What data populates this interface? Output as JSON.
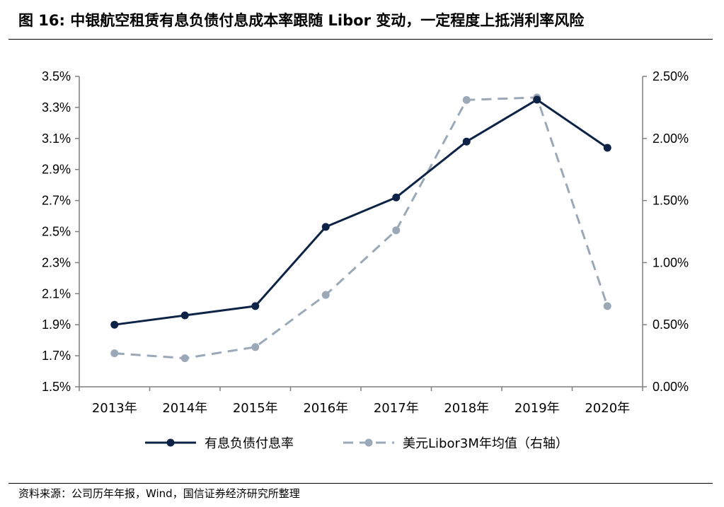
{
  "figure": {
    "title": "图 16:  中银航空租赁有息负债付息成本率跟随 Libor 变动，一定程度上抵消利率风险",
    "source": "资料来源：公司历年年报，Wind，国信证券经济研究所整理"
  },
  "chart_data": {
    "type": "line",
    "categories": [
      "2013年",
      "2014年",
      "2015年",
      "2016年",
      "2017年",
      "2018年",
      "2019年",
      "2020年"
    ],
    "series": [
      {
        "name": "有息负债付息率",
        "axis": "left",
        "color": "#0d2346",
        "dash": "solid",
        "values": [
          1.9,
          1.96,
          2.02,
          2.53,
          2.72,
          3.08,
          3.35,
          3.04
        ]
      },
      {
        "name": "美元Libor3M年均值（右轴）",
        "axis": "right",
        "color": "#9aa8b8",
        "dash": "dashed",
        "values": [
          0.27,
          0.23,
          0.32,
          0.74,
          1.26,
          2.31,
          2.33,
          0.65
        ]
      }
    ],
    "y_left": {
      "min": 1.5,
      "max": 3.5,
      "ticks": [
        1.5,
        1.7,
        1.9,
        2.1,
        2.3,
        2.5,
        2.7,
        2.9,
        3.1,
        3.3,
        3.5
      ],
      "labels": [
        "1.5%",
        "1.7%",
        "1.9%",
        "2.1%",
        "2.3%",
        "2.5%",
        "2.7%",
        "2.9%",
        "3.1%",
        "3.3%",
        "3.5%"
      ]
    },
    "y_right": {
      "min": 0,
      "max": 2.5,
      "ticks": [
        0,
        0.5,
        1.0,
        1.5,
        2.0,
        2.5
      ],
      "labels": [
        "0.00%",
        "0.50%",
        "1.00%",
        "1.50%",
        "2.00%",
        "2.50%"
      ]
    },
    "grid": false,
    "legend_position": "bottom"
  }
}
